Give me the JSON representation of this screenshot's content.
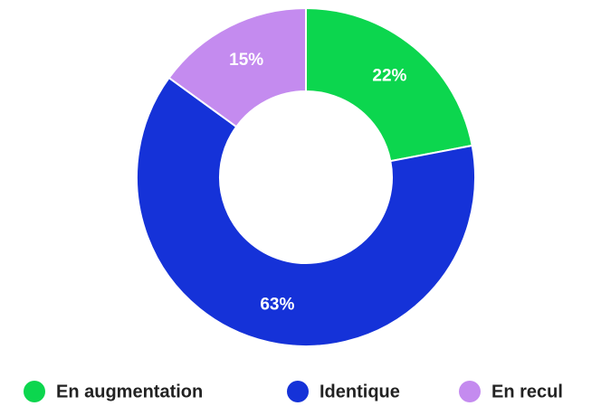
{
  "chart_data": {
    "type": "pie",
    "categories": [
      "En augmentation",
      "Identique",
      "En recul"
    ],
    "values": [
      22,
      63,
      15
    ],
    "value_labels": [
      "22%",
      "63%",
      "15%"
    ],
    "colors": [
      "#0cd64e",
      "#1532d8",
      "#c48bef"
    ],
    "legend": "bottom"
  }
}
